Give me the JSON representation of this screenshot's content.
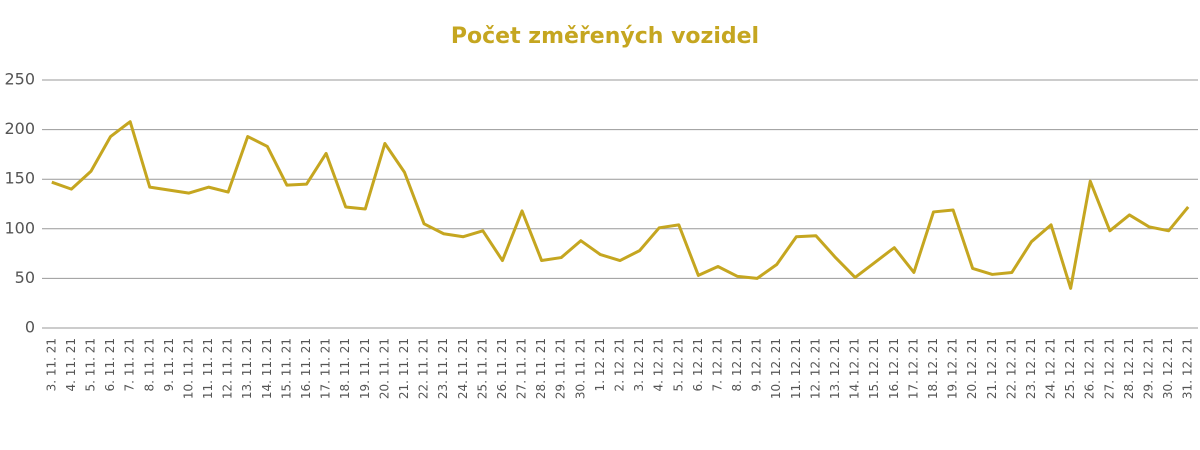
{
  "chart_data": {
    "type": "line",
    "title": "Počet změřených vozidel",
    "categories": [
      "3. 11. 21",
      "4. 11. 21",
      "5. 11. 21",
      "6. 11. 21",
      "7. 11. 21",
      "8. 11. 21",
      "9. 11. 21",
      "10. 11. 21",
      "11. 11. 21",
      "12. 11. 21",
      "13. 11. 21",
      "14. 11. 21",
      "15. 11. 21",
      "16. 11. 21",
      "17. 11. 21",
      "18. 11. 21",
      "19. 11. 21",
      "20. 11. 21",
      "21. 11. 21",
      "22. 11. 21",
      "23. 11. 21",
      "24. 11. 21",
      "25. 11. 21",
      "26. 11. 21",
      "27. 11. 21",
      "28. 11. 21",
      "29. 11. 21",
      "30. 11. 21",
      "1. 12. 21",
      "2. 12. 21",
      "3. 12. 21",
      "4. 12. 21",
      "5. 12. 21",
      "6. 12. 21",
      "7. 12. 21",
      "8. 12. 21",
      "9. 12. 21",
      "10. 12. 21",
      "11. 12. 21",
      "12. 12. 21",
      "13. 12. 21",
      "14. 12. 21",
      "15. 12. 21",
      "16. 12. 21",
      "17. 12. 21",
      "18. 12. 21",
      "19. 12. 21",
      "20. 12. 21",
      "21. 12. 21",
      "22. 12. 21",
      "23. 12. 21",
      "24. 12. 21",
      "25. 12. 21",
      "26. 12. 21",
      "27. 12. 21",
      "28. 12. 21",
      "29. 12. 21",
      "30. 12. 21",
      "31. 12. 21"
    ],
    "values": [
      147,
      140,
      158,
      193,
      208,
      142,
      139,
      136,
      142,
      137,
      193,
      183,
      144,
      145,
      176,
      122,
      120,
      186,
      157,
      105,
      95,
      92,
      98,
      68,
      118,
      68,
      71,
      88,
      74,
      68,
      78,
      101,
      104,
      53,
      62,
      52,
      50,
      64,
      92,
      93,
      71,
      51,
      66,
      81,
      56,
      117,
      119,
      60,
      54,
      56,
      87,
      104,
      40,
      148,
      98,
      114,
      102,
      98,
      122
    ],
    "color": "#c5a620",
    "ylim": [
      0,
      250
    ],
    "yticks": [
      0,
      50,
      100,
      150,
      200,
      250
    ],
    "grid": true
  }
}
